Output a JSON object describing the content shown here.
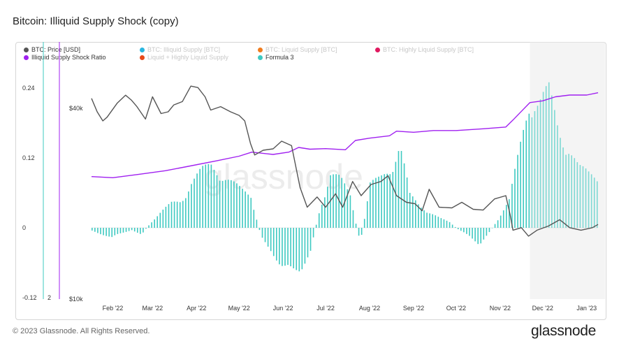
{
  "header": {
    "title": "Bitcoin: Illiquid Supply Shock (copy)"
  },
  "legend": {
    "items": [
      {
        "label": "BTC: Price [USD]",
        "color": "#555555",
        "active": true
      },
      {
        "label": "BTC: Illiquid Supply [BTC]",
        "color": "#29b6e0",
        "active": false
      },
      {
        "label": "BTC: Liquid Supply [BTC]",
        "color": "#f07c1e",
        "active": false
      },
      {
        "label": "BTC: Highly Liquid Supply [BTC]",
        "color": "#e0195f",
        "active": false
      },
      {
        "label": "Illiquid Supply Shock Ratio",
        "color": "#a020f0",
        "active": true
      },
      {
        "label": "Liquid + Highly Liquid Supply",
        "color": "#e84a1a",
        "active": false
      },
      {
        "label": "Formula 3",
        "color": "#3ec9c1",
        "active": true
      }
    ]
  },
  "footer": {
    "copyright": "© 2023 Glassnode. All Rights Reserved.",
    "logo": "glassnode"
  },
  "watermark": "glassnode",
  "chart_data": {
    "type": "line",
    "x_ticks": [
      "Feb '22",
      "Mar '22",
      "Apr '22",
      "May '22",
      "Jun '22",
      "Jul '22",
      "Aug '22",
      "Sep '22",
      "Oct '22",
      "Nov '22",
      "Dec '22",
      "Jan '23"
    ],
    "x_range": [
      "2022-01-17",
      "2023-01-09"
    ],
    "left_axis": {
      "ticks": [
        "0.24",
        "0.12",
        "0",
        "-0.12"
      ],
      "values": [
        0.24,
        0.12,
        0,
        -0.12
      ],
      "ylim": [
        -0.12,
        0.24
      ]
    },
    "second_axis": {
      "ticks": [
        "2"
      ]
    },
    "price_axis": {
      "ticks": [
        "$40k",
        "$10k"
      ],
      "scale": "log",
      "ylim": [
        10000,
        60000
      ]
    },
    "shaded_region_start": "2022-11-22",
    "series": [
      {
        "name": "BTC: Price [USD]",
        "axis": "price",
        "style": "line",
        "color": "#555555",
        "points": [
          [
            "2022-01-17",
            43000
          ],
          [
            "2022-01-21",
            39000
          ],
          [
            "2022-01-25",
            36500
          ],
          [
            "2022-01-28",
            37500
          ],
          [
            "2022-02-04",
            41500
          ],
          [
            "2022-02-10",
            44000
          ],
          [
            "2022-02-14",
            42500
          ],
          [
            "2022-02-18",
            40500
          ],
          [
            "2022-02-24",
            37000
          ],
          [
            "2022-03-01",
            43500
          ],
          [
            "2022-03-07",
            38500
          ],
          [
            "2022-03-12",
            39000
          ],
          [
            "2022-03-16",
            41000
          ],
          [
            "2022-03-22",
            42000
          ],
          [
            "2022-03-28",
            47000
          ],
          [
            "2022-04-02",
            46500
          ],
          [
            "2022-04-07",
            43500
          ],
          [
            "2022-04-11",
            39500
          ],
          [
            "2022-04-18",
            40500
          ],
          [
            "2022-04-25",
            39000
          ],
          [
            "2022-05-01",
            38000
          ],
          [
            "2022-05-05",
            36500
          ],
          [
            "2022-05-09",
            31000
          ],
          [
            "2022-05-12",
            28500
          ],
          [
            "2022-05-18",
            29500
          ],
          [
            "2022-05-25",
            29800
          ],
          [
            "2022-05-31",
            31500
          ],
          [
            "2022-06-07",
            30500
          ],
          [
            "2022-06-13",
            22500
          ],
          [
            "2022-06-18",
            19500
          ],
          [
            "2022-06-25",
            21000
          ],
          [
            "2022-07-01",
            19500
          ],
          [
            "2022-07-08",
            21500
          ],
          [
            "2022-07-13",
            19500
          ],
          [
            "2022-07-20",
            23500
          ],
          [
            "2022-07-26",
            21200
          ],
          [
            "2022-08-02",
            23000
          ],
          [
            "2022-08-09",
            23500
          ],
          [
            "2022-08-14",
            24500
          ],
          [
            "2022-08-20",
            21200
          ],
          [
            "2022-08-27",
            20200
          ],
          [
            "2022-09-02",
            20000
          ],
          [
            "2022-09-07",
            19000
          ],
          [
            "2022-09-12",
            22200
          ],
          [
            "2022-09-19",
            19500
          ],
          [
            "2022-09-28",
            19400
          ],
          [
            "2022-10-05",
            20200
          ],
          [
            "2022-10-13",
            19200
          ],
          [
            "2022-10-20",
            19100
          ],
          [
            "2022-10-28",
            20700
          ],
          [
            "2022-11-05",
            21200
          ],
          [
            "2022-11-08",
            18500
          ],
          [
            "2022-11-10",
            16500
          ],
          [
            "2022-11-16",
            16800
          ],
          [
            "2022-11-21",
            15800
          ],
          [
            "2022-11-27",
            16500
          ],
          [
            "2022-12-05",
            17000
          ],
          [
            "2022-12-13",
            17800
          ],
          [
            "2022-12-20",
            16800
          ],
          [
            "2022-12-28",
            16500
          ],
          [
            "2023-01-05",
            16800
          ],
          [
            "2023-01-09",
            17200
          ]
        ]
      },
      {
        "name": "Illiquid Supply Shock Ratio",
        "axis": "left",
        "style": "line",
        "color": "#a020f0",
        "points": [
          [
            "2022-01-17",
            0.088
          ],
          [
            "2022-02-01",
            0.086
          ],
          [
            "2022-02-20",
            0.092
          ],
          [
            "2022-03-10",
            0.098
          ],
          [
            "2022-03-25",
            0.105
          ],
          [
            "2022-04-15",
            0.115
          ],
          [
            "2022-05-01",
            0.123
          ],
          [
            "2022-05-10",
            0.13
          ],
          [
            "2022-05-25",
            0.126
          ],
          [
            "2022-06-05",
            0.13
          ],
          [
            "2022-06-12",
            0.138
          ],
          [
            "2022-06-20",
            0.135
          ],
          [
            "2022-07-01",
            0.136
          ],
          [
            "2022-07-15",
            0.134
          ],
          [
            "2022-07-22",
            0.15
          ],
          [
            "2022-08-01",
            0.154
          ],
          [
            "2022-08-15",
            0.158
          ],
          [
            "2022-08-20",
            0.166
          ],
          [
            "2022-09-01",
            0.164
          ],
          [
            "2022-09-15",
            0.167
          ],
          [
            "2022-10-01",
            0.167
          ],
          [
            "2022-10-20",
            0.17
          ],
          [
            "2022-11-05",
            0.173
          ],
          [
            "2022-11-10",
            0.185
          ],
          [
            "2022-11-16",
            0.2
          ],
          [
            "2022-11-22",
            0.215
          ],
          [
            "2022-12-01",
            0.218
          ],
          [
            "2022-12-10",
            0.225
          ],
          [
            "2022-12-20",
            0.228
          ],
          [
            "2023-01-01",
            0.228
          ],
          [
            "2023-01-09",
            0.232
          ]
        ]
      },
      {
        "name": "Formula 3",
        "axis": "left",
        "style": "bar",
        "color": "#3ec9c1",
        "points": [
          [
            "2022-01-17",
            -0.005
          ],
          [
            "2022-01-24",
            -0.012
          ],
          [
            "2022-01-31",
            -0.018
          ],
          [
            "2022-02-07",
            -0.01
          ],
          [
            "2022-02-14",
            -0.004
          ],
          [
            "2022-02-21",
            -0.012
          ],
          [
            "2022-02-28",
            0.012
          ],
          [
            "2022-03-07",
            0.03
          ],
          [
            "2022-03-14",
            0.045
          ],
          [
            "2022-03-21",
            0.05
          ],
          [
            "2022-03-28",
            0.085
          ],
          [
            "2022-04-04",
            0.105
          ],
          [
            "2022-04-11",
            0.115
          ],
          [
            "2022-04-18",
            0.1
          ],
          [
            "2022-04-25",
            0.085
          ],
          [
            "2022-05-02",
            0.07
          ],
          [
            "2022-05-09",
            0.06
          ],
          [
            "2022-05-16",
            -0.015
          ],
          [
            "2022-05-23",
            -0.04
          ],
          [
            "2022-05-30",
            -0.07
          ],
          [
            "2022-06-06",
            -0.082
          ],
          [
            "2022-06-13",
            -0.078
          ],
          [
            "2022-06-20",
            -0.04
          ],
          [
            "2022-06-27",
            0.04
          ],
          [
            "2022-07-04",
            0.1
          ],
          [
            "2022-07-11",
            0.09
          ],
          [
            "2022-07-18",
            0.06
          ],
          [
            "2022-07-25",
            -0.03
          ],
          [
            "2022-08-01",
            0.08
          ],
          [
            "2022-08-08",
            0.09
          ],
          [
            "2022-08-15",
            0.11
          ],
          [
            "2022-08-22",
            0.155
          ],
          [
            "2022-08-29",
            0.06
          ],
          [
            "2022-09-05",
            0.04
          ],
          [
            "2022-09-12",
            0.03
          ],
          [
            "2022-09-19",
            0.018
          ],
          [
            "2022-09-26",
            0.01
          ],
          [
            "2022-10-03",
            -0.005
          ],
          [
            "2022-10-10",
            -0.015
          ],
          [
            "2022-10-17",
            -0.03
          ],
          [
            "2022-10-24",
            -0.008
          ],
          [
            "2022-10-31",
            0.02
          ],
          [
            "2022-11-07",
            0.05
          ],
          [
            "2022-11-14",
            0.14
          ],
          [
            "2022-11-21",
            0.24
          ],
          [
            "2022-11-28",
            0.23
          ],
          [
            "2022-12-05",
            0.25
          ],
          [
            "2022-12-12",
            0.18
          ],
          [
            "2022-12-19",
            0.15
          ],
          [
            "2022-12-26",
            0.11
          ],
          [
            "2023-01-02",
            0.1
          ],
          [
            "2023-01-09",
            0.095
          ]
        ]
      }
    ]
  }
}
